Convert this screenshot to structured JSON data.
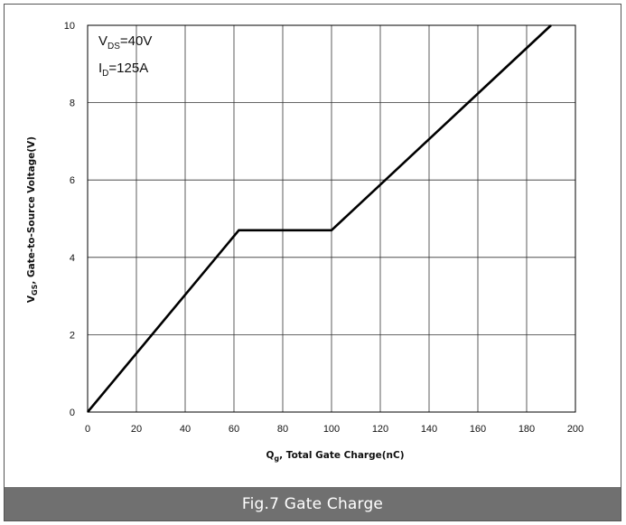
{
  "chart_data": {
    "type": "line",
    "title": "",
    "xlabel_main": "Q",
    "xlabel_sub": "g",
    "xlabel_rest": ", Total Gate Charge(nC)",
    "ylabel_main": "V",
    "ylabel_sub": "GS",
    "ylabel_rest": ", Gate-to-Source Voltage(V)",
    "xlim": [
      0,
      200
    ],
    "ylim": [
      0,
      10
    ],
    "xticks": [
      0,
      20,
      40,
      60,
      80,
      100,
      120,
      140,
      160,
      180,
      200
    ],
    "yticks": [
      0,
      2,
      4,
      6,
      8,
      10
    ],
    "grid": true,
    "series": [
      {
        "x": [
          0,
          62,
          100,
          190
        ],
        "y": [
          0,
          4.7,
          4.7,
          10
        ]
      }
    ],
    "annotations": [
      {
        "main": "V",
        "sub": "DS",
        "rest": "=40V"
      },
      {
        "main": "I",
        "sub": "D",
        "rest": "=125A"
      }
    ],
    "line_color": "#000000",
    "grid_color": "#333333"
  },
  "caption": "Fig.7 Gate Charge"
}
